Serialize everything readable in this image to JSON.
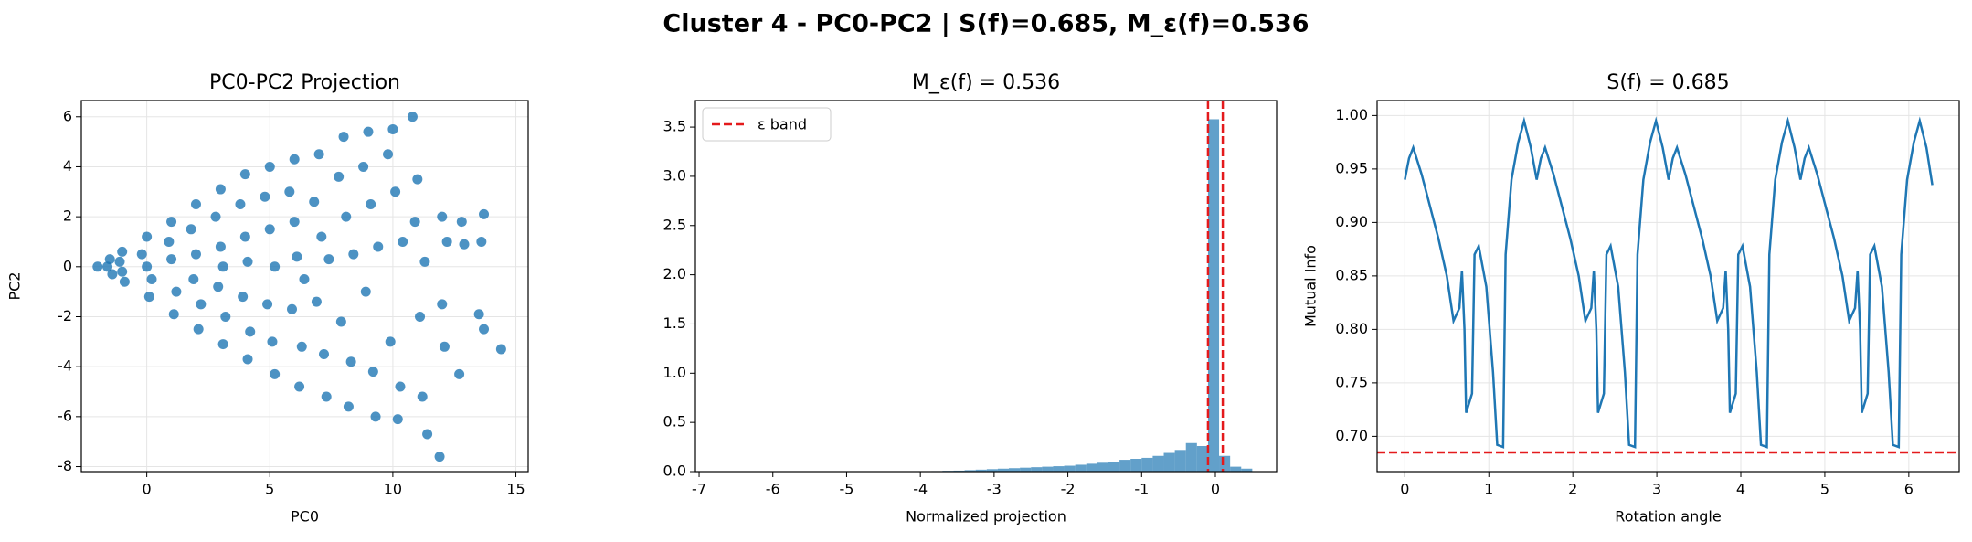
{
  "title": "Cluster 4 - PC0-PC2 | S(f)=0.685, M_ε(f)=0.536",
  "chart_data": [
    {
      "type": "scatter",
      "title": "PC0-PC2 Projection",
      "xlabel": "PC0",
      "ylabel": "PC2",
      "color": "#1f77b4",
      "grid": true,
      "xlim": [
        -2.66,
        15.5
      ],
      "ylim": [
        -8.2,
        6.65
      ],
      "xticks": [
        0,
        5,
        10,
        15
      ],
      "yticks": [
        -8,
        -6,
        -4,
        -2,
        0,
        2,
        4,
        6
      ],
      "x": [
        -2,
        -1.5,
        -1.4,
        -1.6,
        -1,
        -0.9,
        -1.1,
        -1,
        0,
        0.1,
        -0.2,
        0.2,
        0,
        1,
        1.1,
        0.9,
        1.2,
        1,
        2,
        2.1,
        1.8,
        2.2,
        2,
        1.9,
        3,
        3.1,
        2.8,
        3.2,
        3,
        2.9,
        3.1,
        4,
        4.1,
        3.8,
        4.2,
        4,
        3.9,
        4.1,
        5,
        5.2,
        4.8,
        5.1,
        5,
        4.9,
        5.2,
        6,
        6.2,
        5.8,
        6.3,
        6,
        5.9,
        6.1,
        6.4,
        7,
        7.3,
        6.8,
        7.2,
        7.1,
        6.9,
        7.4,
        8,
        8.2,
        7.8,
        8.3,
        8.1,
        7.9,
        8.4,
        9,
        9.3,
        8.8,
        9.2,
        9.1,
        8.9,
        9.4,
        10,
        10.2,
        9.8,
        10.3,
        10.1,
        9.9,
        10.4,
        10.8,
        11,
        11.2,
        10.9,
        11.1,
        11.3,
        11.4,
        12,
        12.1,
        11.9,
        12.2,
        12,
        12.8,
        12.9,
        12.7,
        13.7,
        13.6,
        13.7,
        14.4,
        13.5
      ],
      "y": [
        0,
        0.3,
        -0.3,
        0,
        0.6,
        -0.6,
        0.2,
        -0.2,
        1.2,
        -1.2,
        0.5,
        -0.5,
        0,
        1.8,
        -1.9,
        1,
        -1,
        0.3,
        2.5,
        -2.5,
        1.5,
        -1.5,
        0.5,
        -0.5,
        3.1,
        -3.1,
        2,
        -2,
        0.8,
        -0.8,
        0,
        3.7,
        -3.7,
        2.5,
        -2.6,
        1.2,
        -1.2,
        0.2,
        4,
        -4.3,
        2.8,
        -3,
        1.5,
        -1.5,
        0,
        4.3,
        -4.8,
        3,
        -3.2,
        1.8,
        -1.7,
        0.4,
        -0.5,
        4.5,
        -5.2,
        2.6,
        -3.5,
        1.2,
        -1.4,
        0.3,
        5.2,
        -5.6,
        3.6,
        -3.8,
        2,
        -2.2,
        0.5,
        5.4,
        -6,
        4,
        -4.2,
        2.5,
        -1,
        0.8,
        5.5,
        -6.1,
        4.5,
        -4.8,
        3,
        -3,
        1,
        6,
        3.5,
        -5.2,
        1.8,
        -2,
        0.2,
        -6.7,
        2,
        -3.2,
        -7.6,
        1,
        -1.5,
        1.8,
        0.9,
        -4.3,
        2.1,
        1,
        -2.5,
        -3.3,
        -1.9
      ]
    },
    {
      "type": "histogram",
      "title": "M_ε(f) = 0.536",
      "xlabel": "Normalized projection",
      "color": "#1f77b4",
      "grid": false,
      "legend": "upper left",
      "xlim": [
        -7.05,
        0.83
      ],
      "ylim": [
        0,
        3.77
      ],
      "xticks": [
        -7,
        -6,
        -5,
        -4,
        -3,
        -2,
        -1,
        0
      ],
      "yticks": [
        {
          "value": 0,
          "label": "0.0"
        },
        0.5,
        {
          "value": 1,
          "label": "1.0"
        },
        1.5,
        {
          "value": 2,
          "label": "2.0"
        },
        2.5,
        {
          "value": 3,
          "label": "3.0"
        },
        3.5
      ],
      "bins": [
        -7,
        -6.85,
        -6.7,
        -6.55,
        -6.4,
        -6.25,
        -6.1,
        -5.95,
        -5.8,
        -5.65,
        -5.5,
        -5.35,
        -5.2,
        -5.05,
        -4.9,
        -4.75,
        -4.6,
        -4.45,
        -4.3,
        -4.15,
        -4,
        -3.85,
        -3.7,
        -3.55,
        -3.4,
        -3.25,
        -3.1,
        -2.95,
        -2.8,
        -2.65,
        -2.5,
        -2.35,
        -2.2,
        -2.05,
        -1.9,
        -1.75,
        -1.6,
        -1.45,
        -1.3,
        -1.15,
        -1,
        -0.85,
        -0.7,
        -0.55,
        -0.4,
        -0.25,
        -0.1,
        0.05,
        0.2,
        0.35,
        0.5
      ],
      "counts": [
        0,
        0,
        0,
        0,
        0,
        0,
        0,
        0,
        0,
        0,
        0,
        0,
        0,
        0,
        0,
        0,
        0,
        0,
        0,
        0,
        0,
        0.005,
        0.008,
        0.01,
        0.015,
        0.02,
        0.025,
        0.03,
        0.035,
        0.04,
        0.045,
        0.05,
        0.055,
        0.06,
        0.07,
        0.08,
        0.09,
        0.1,
        0.12,
        0.13,
        0.14,
        0.16,
        0.19,
        0.22,
        0.29,
        0.26,
        3.58,
        0.16,
        0.05,
        0.03
      ],
      "vlines": {
        "name": "ε band",
        "color": "#e41a1c",
        "values": [
          -0.1,
          0.1
        ]
      }
    },
    {
      "type": "line",
      "title": "S(f) = 0.685",
      "xlabel": "Rotation angle",
      "ylabel": "Mutual Info",
      "color": "#1f77b4",
      "grid": true,
      "xlim": [
        -0.33,
        6.6
      ],
      "ylim": [
        0.667,
        1.014
      ],
      "xticks": [
        0,
        1,
        2,
        3,
        4,
        5,
        6
      ],
      "yticks": [
        {
          "value": 0.7,
          "label": "0.70"
        },
        0.75,
        {
          "value": 0.8,
          "label": "0.80"
        },
        0.85,
        {
          "value": 0.9,
          "label": "0.90"
        },
        0.95,
        {
          "value": 1,
          "label": "1.00"
        }
      ],
      "x": [
        0,
        0.05,
        0.1,
        0.2,
        0.3,
        0.4,
        0.5,
        0.58,
        0.65,
        0.68,
        0.71,
        0.73,
        0.8,
        0.83,
        0.88,
        0.97,
        1.05,
        1.1,
        1.17,
        1.2,
        1.27,
        1.35,
        1.42,
        1.5,
        1.57,
        1.62,
        1.67,
        1.77,
        1.87,
        1.97,
        2.07,
        2.15,
        2.22,
        2.25,
        2.28,
        2.3,
        2.37,
        2.4,
        2.45,
        2.54,
        2.62,
        2.67,
        2.74,
        2.77,
        2.84,
        2.92,
        2.99,
        3.07,
        3.14,
        3.19,
        3.24,
        3.34,
        3.44,
        3.54,
        3.64,
        3.72,
        3.79,
        3.82,
        3.85,
        3.87,
        3.94,
        3.97,
        4.02,
        4.11,
        4.19,
        4.24,
        4.31,
        4.34,
        4.41,
        4.49,
        4.56,
        4.64,
        4.71,
        4.76,
        4.81,
        4.91,
        5.01,
        5.11,
        5.21,
        5.29,
        5.36,
        5.39,
        5.42,
        5.44,
        5.51,
        5.54,
        5.59,
        5.68,
        5.76,
        5.81,
        5.88,
        5.91,
        5.98,
        6.06,
        6.13,
        6.21,
        6.28
      ],
      "values": [
        0.94,
        0.96,
        0.97,
        0.945,
        0.915,
        0.885,
        0.85,
        0.808,
        0.82,
        0.855,
        0.8,
        0.722,
        0.74,
        0.87,
        0.878,
        0.84,
        0.76,
        0.692,
        0.69,
        0.87,
        0.94,
        0.975,
        0.995,
        0.97,
        0.94,
        0.96,
        0.97,
        0.945,
        0.915,
        0.885,
        0.85,
        0.808,
        0.82,
        0.855,
        0.8,
        0.722,
        0.74,
        0.87,
        0.878,
        0.84,
        0.76,
        0.692,
        0.69,
        0.87,
        0.94,
        0.975,
        0.995,
        0.97,
        0.94,
        0.96,
        0.97,
        0.945,
        0.915,
        0.885,
        0.85,
        0.808,
        0.82,
        0.855,
        0.8,
        0.722,
        0.74,
        0.87,
        0.878,
        0.84,
        0.76,
        0.692,
        0.69,
        0.87,
        0.94,
        0.975,
        0.995,
        0.97,
        0.94,
        0.96,
        0.97,
        0.945,
        0.915,
        0.885,
        0.85,
        0.808,
        0.82,
        0.855,
        0.8,
        0.722,
        0.74,
        0.87,
        0.878,
        0.84,
        0.76,
        0.692,
        0.69,
        0.87,
        0.94,
        0.975,
        0.995,
        0.97,
        0.935
      ],
      "hline": {
        "value": 0.685,
        "color": "#e41a1c"
      }
    }
  ]
}
